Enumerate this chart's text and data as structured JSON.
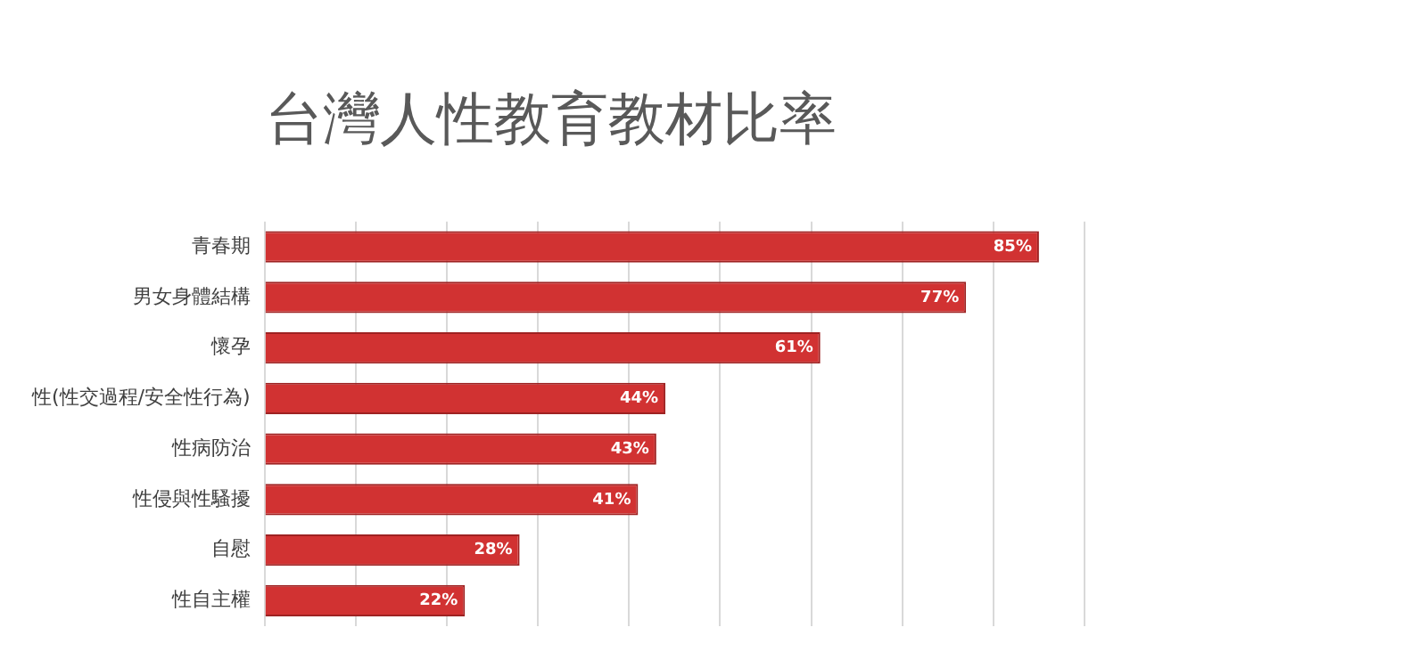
{
  "chart_data": {
    "type": "bar",
    "orientation": "horizontal",
    "title": "台灣人性教育教材比率",
    "categories": [
      "青春期",
      "男女身體結構",
      "懷孕",
      "性(性交過程/安全性行為)",
      "性病防治",
      "性侵與性騷擾",
      "自慰",
      "性自主權"
    ],
    "values": [
      85,
      77,
      61,
      44,
      43,
      41,
      28,
      22
    ],
    "color": "#d13232",
    "value_labels": [
      "85%",
      "77%",
      "61%",
      "44%",
      "43%",
      "41%",
      "28%",
      "22%"
    ],
    "xlim": [
      0,
      90
    ],
    "xticks": [
      {
        "value": 0,
        "label": null
      },
      {
        "value": 10,
        "label": null
      },
      {
        "value": 20,
        "label": null
      },
      {
        "value": 30,
        "label": null
      },
      {
        "value": 40,
        "label": null
      },
      {
        "value": 50,
        "label": null
      },
      {
        "value": 60,
        "label": null
      },
      {
        "value": 70,
        "label": null
      },
      {
        "value": 80,
        "label": null
      },
      {
        "value": 90,
        "label": null
      }
    ],
    "grid": "x",
    "legend": false,
    "tick_labels": "y"
  }
}
